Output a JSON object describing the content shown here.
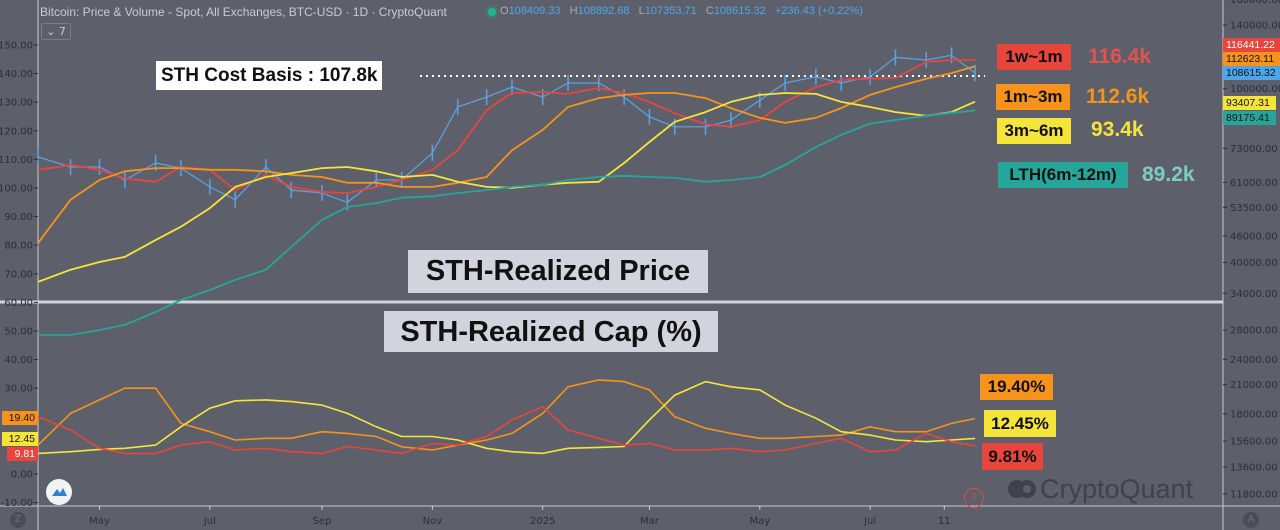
{
  "header": {
    "title": "Bitcoin: Price & Volume - Spot, All Exchanges, BTC-USD · 1D · CryptoQuant",
    "collapse_label": "⌄ 7",
    "ohlc": {
      "o_label": "O",
      "o": "108409.33",
      "h_label": "H",
      "h": "108892.68",
      "l_label": "L",
      "l": "107353.71",
      "c_label": "C",
      "c": "108615.32",
      "change": "+236.43 (+0.22%)"
    }
  },
  "annotations": {
    "cost_basis": "STH Cost Basis : 107.8k",
    "top_panel_title": "STH-Realized Price",
    "bottom_panel_title": "STH-Realized Cap (%)"
  },
  "legend": [
    {
      "label": "1w~1m",
      "value": "116.4k",
      "color": "#e8453c",
      "text_color": "#e8504a"
    },
    {
      "label": "1m~3m",
      "value": "112.6k",
      "color": "#f7931a",
      "text_color": "#f7931a"
    },
    {
      "label": "3m~6m",
      "value": "93.4k",
      "color": "#f5e53a",
      "text_color": "#f5e53a"
    },
    {
      "label": "LTH(6m-12m)",
      "value": "89.2k",
      "color": "#26a69a",
      "text_color": "#80cbc4"
    }
  ],
  "percent_labels": [
    {
      "label": "19.40%",
      "color": "#f7931a"
    },
    {
      "label": "12.45%",
      "color": "#f5e53a"
    },
    {
      "label": "9.81%",
      "color": "#e8453c"
    }
  ],
  "right_axis_badges": [
    {
      "value": "116441.22",
      "color": "#e8453c",
      "text": "#ffffff"
    },
    {
      "value": "112623.11",
      "color": "#f7931a",
      "text": "#111111"
    },
    {
      "value": "108615.32",
      "color": "#4da6ec",
      "text": "#111111"
    },
    {
      "value": "93407.31",
      "color": "#f5e53a",
      "text": "#111111"
    },
    {
      "value": "89175.41",
      "color": "#26a69a",
      "text": "#111111"
    }
  ],
  "left_axis_badges": [
    {
      "value": "19.40",
      "color": "#f7931a",
      "text": "#111111"
    },
    {
      "value": "12.45",
      "color": "#f5e53a",
      "text": "#111111"
    },
    {
      "value": "9.81",
      "color": "#e8453c",
      "text": "#ffffff"
    }
  ],
  "watermark": "CryptoQuant",
  "help_icon": "?",
  "corner_left": "Z",
  "corner_right": "A",
  "chart_data": [
    {
      "type": "line",
      "title": "STH-Realized Price",
      "yscale": "log",
      "yaxis_side": "right",
      "ylabel": "",
      "ylim": [
        11800,
        160000
      ],
      "grid": false,
      "right_ticks": [
        "160000.00",
        "140000.00",
        "100000.00",
        "73000.00",
        "61000.00",
        "53500.00",
        "46000.00",
        "40000.00",
        "34000.00",
        "28000.00",
        "24000.00",
        "21000.00",
        "18000.00",
        "15600.00",
        "13600.00",
        "11800.00"
      ],
      "x": [
        "2024-03-28",
        "2024-04-15",
        "2024-05-01",
        "2024-05-15",
        "2024-06-01",
        "2024-06-15",
        "2024-07-01",
        "2024-07-15",
        "2024-08-01",
        "2024-08-15",
        "2024-09-01",
        "2024-09-15",
        "2024-10-01",
        "2024-10-15",
        "2024-11-01",
        "2024-11-15",
        "2024-12-01",
        "2024-12-15",
        "2025-01-01",
        "2025-01-15",
        "2025-02-01",
        "2025-02-15",
        "2025-03-01",
        "2025-03-15",
        "2025-04-01",
        "2025-04-15",
        "2025-05-01",
        "2025-05-15",
        "2025-06-01",
        "2025-06-15",
        "2025-07-01",
        "2025-07-15",
        "2025-08-01",
        "2025-08-15",
        "2025-08-28"
      ],
      "x_ticks": [
        {
          "label": "May",
          "date": "2024-05-01"
        },
        {
          "label": "Jul",
          "date": "2024-07-01"
        },
        {
          "label": "Sep",
          "date": "2024-09-01"
        },
        {
          "label": "Nov",
          "date": "2024-11-01"
        },
        {
          "label": "2025",
          "date": "2025-01-01"
        },
        {
          "label": "Mar",
          "date": "2025-03-01"
        },
        {
          "label": "May",
          "date": "2025-05-01"
        },
        {
          "label": "Jul",
          "date": "2025-07-01"
        },
        {
          "label": "11",
          "date": "2025-08-11"
        }
      ],
      "units": "thousand USD",
      "reference_line": {
        "value": 107.8,
        "style": "dotted",
        "color": "#ffffff"
      },
      "series": [
        {
          "name": "BTC-USD",
          "color": "#5ba3e6",
          "values": [
            69.8,
            66.2,
            66.2,
            61.8,
            67.6,
            65.8,
            59.6,
            55.7,
            66.2,
            58.6,
            57.7,
            54.9,
            61.8,
            61.8,
            71.3,
            90.8,
            95.7,
            100.9,
            95.7,
            103.1,
            103.1,
            95.7,
            86.2,
            81.8,
            81.8,
            84.7,
            94.2,
            103.1,
            106.5,
            103.1,
            106.5,
            118.0,
            116.4,
            119.3,
            108.6
          ]
        },
        {
          "name": "1w~1m",
          "color": "#e8453c",
          "values": [
            65.2,
            66.9,
            65.2,
            62.3,
            61.2,
            66.2,
            65.2,
            58.6,
            63.5,
            59.6,
            58.0,
            57.7,
            59.6,
            61.8,
            65.2,
            72.3,
            89.4,
            97.8,
            98.3,
            97.3,
            100.4,
            97.8,
            93.3,
            87.9,
            83.0,
            81.8,
            84.7,
            93.3,
            100.9,
            104.8,
            105.4,
            105.9,
            115.2,
            116.4,
            116.4
          ]
        },
        {
          "name": "1m~3m",
          "color": "#f7931a",
          "values": [
            44.3,
            55.7,
            61.8,
            64.7,
            65.8,
            65.8,
            65.2,
            65.2,
            64.7,
            63.5,
            62.8,
            60.9,
            60.9,
            59.6,
            59.6,
            60.9,
            62.8,
            72.3,
            80.5,
            90.8,
            95.2,
            96.8,
            97.8,
            97.8,
            95.2,
            90.3,
            85.8,
            83.5,
            85.8,
            90.3,
            96.8,
            100.9,
            105.4,
            108.6,
            112.6
          ]
        },
        {
          "name": "3m~6m",
          "color": "#f5e53a",
          "values": [
            36.1,
            38.5,
            40.1,
            41.2,
            45.0,
            48.3,
            53.3,
            59.6,
            62.8,
            64.1,
            65.8,
            66.2,
            64.7,
            62.8,
            63.5,
            61.2,
            59.6,
            59.3,
            60.3,
            60.9,
            61.2,
            67.6,
            75.5,
            84.0,
            88.4,
            93.3,
            96.8,
            97.8,
            97.3,
            93.3,
            90.8,
            88.4,
            86.7,
            88.4,
            93.4
          ]
        },
        {
          "name": "LTH(6m-12m)",
          "color": "#26a69a",
          "values": [
            27.3,
            27.3,
            28.0,
            28.8,
            30.8,
            32.8,
            34.6,
            36.5,
            38.5,
            43.4,
            50.1,
            53.6,
            54.7,
            56.3,
            56.7,
            57.7,
            58.6,
            59.6,
            60.3,
            61.8,
            62.8,
            63.2,
            62.8,
            62.5,
            61.2,
            61.8,
            62.8,
            66.9,
            73.5,
            78.4,
            83.2,
            84.8,
            86.7,
            88.1,
            89.2
          ]
        }
      ]
    },
    {
      "type": "line",
      "title": "STH-Realized Cap (%)",
      "yaxis_side": "left",
      "ylabel": "",
      "ylim": [
        -10,
        150
      ],
      "grid": false,
      "left_ticks": [
        "150.00",
        "140.00",
        "130.00",
        "120.00",
        "110.00",
        "100.00",
        "90.00",
        "80.00",
        "70.00",
        "60.00",
        "50.00",
        "40.00",
        "30.00",
        "0.00",
        "-10.00"
      ],
      "x": "same as price panel",
      "series": [
        {
          "name": "1m~3m",
          "color": "#f7931a",
          "values": [
            10.1,
            21.2,
            25.9,
            30.0,
            30.0,
            17.7,
            14.8,
            11.9,
            12.5,
            12.5,
            14.8,
            14.2,
            13.1,
            9.5,
            8.4,
            10.1,
            11.9,
            14.2,
            21.2,
            30.5,
            32.9,
            32.3,
            29.4,
            20.0,
            16.0,
            14.2,
            12.5,
            12.5,
            13.1,
            13.6,
            16.5,
            14.8,
            14.8,
            17.7,
            19.4
          ]
        },
        {
          "name": "3m~6m",
          "color": "#f5e53a",
          "values": [
            7.2,
            7.8,
            8.6,
            9.0,
            10.1,
            16.5,
            23.0,
            25.6,
            25.9,
            25.3,
            24.1,
            21.2,
            16.5,
            13.1,
            13.1,
            11.9,
            9.0,
            7.8,
            7.2,
            9.0,
            9.3,
            9.6,
            18.9,
            27.6,
            32.3,
            30.5,
            29.4,
            24.1,
            19.5,
            14.8,
            13.6,
            11.9,
            11.3,
            11.9,
            12.45
          ]
        },
        {
          "name": "1w~1m",
          "color": "#e8453c",
          "values": [
            20.0,
            15.4,
            9.0,
            7.2,
            7.2,
            10.1,
            11.3,
            8.4,
            9.0,
            7.8,
            7.2,
            9.6,
            8.4,
            7.2,
            10.7,
            10.1,
            13.1,
            18.9,
            23.5,
            15.4,
            12.5,
            10.1,
            10.7,
            8.4,
            8.4,
            9.0,
            7.8,
            8.4,
            10.7,
            12.5,
            7.8,
            8.4,
            14.2,
            11.3,
            9.81
          ]
        }
      ]
    }
  ]
}
